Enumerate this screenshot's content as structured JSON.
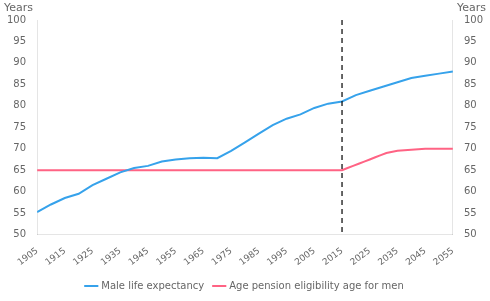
{
  "chart_data": {
    "type": "line",
    "ylabel": "Years",
    "y2label": "Years",
    "xlim": [
      1905,
      2055
    ],
    "xticks": [
      1905,
      1915,
      1925,
      1935,
      1945,
      1955,
      1965,
      1975,
      1985,
      1995,
      2005,
      2015,
      2025,
      2035,
      2045,
      2055
    ],
    "ylim": [
      50,
      100
    ],
    "yticks": [
      50,
      55,
      60,
      65,
      70,
      75,
      80,
      85,
      90,
      95,
      100
    ],
    "y2lim": [
      50,
      100
    ],
    "y2ticks": [
      50,
      55,
      60,
      65,
      70,
      75,
      80,
      85,
      90,
      95,
      100
    ],
    "vline_x": 2015,
    "grid": false,
    "legend": "bottom",
    "series": [
      {
        "name": "Male life expectancy",
        "x": [
          1905,
          1910,
          1915,
          1920,
          1925,
          1930,
          1935,
          1940,
          1945,
          1950,
          1955,
          1960,
          1965,
          1970,
          1975,
          1980,
          1985,
          1990,
          1995,
          2000,
          2005,
          2010,
          2015,
          2020,
          2025,
          2030,
          2035,
          2040,
          2045,
          2050,
          2055
        ],
        "values": [
          55.2,
          57.0,
          58.5,
          59.5,
          61.5,
          63.0,
          64.5,
          65.5,
          66.0,
          67.0,
          67.5,
          67.8,
          67.9,
          67.8,
          69.5,
          71.5,
          73.5,
          75.5,
          77.0,
          78.0,
          79.5,
          80.5,
          81.0,
          82.5,
          83.5,
          84.5,
          85.5,
          86.5,
          87.0,
          87.5,
          88.0
        ]
      },
      {
        "name": "Age pension eligibility age for men",
        "x": [
          1905,
          2014,
          2015,
          2017,
          2019,
          2021,
          2023,
          2025,
          2027,
          2029,
          2031,
          2035,
          2045,
          2055
        ],
        "values": [
          65,
          65,
          65,
          65.5,
          66.0,
          66.5,
          67.0,
          67.5,
          68.0,
          68.5,
          69.0,
          69.5,
          70.0,
          70.0
        ]
      }
    ]
  }
}
